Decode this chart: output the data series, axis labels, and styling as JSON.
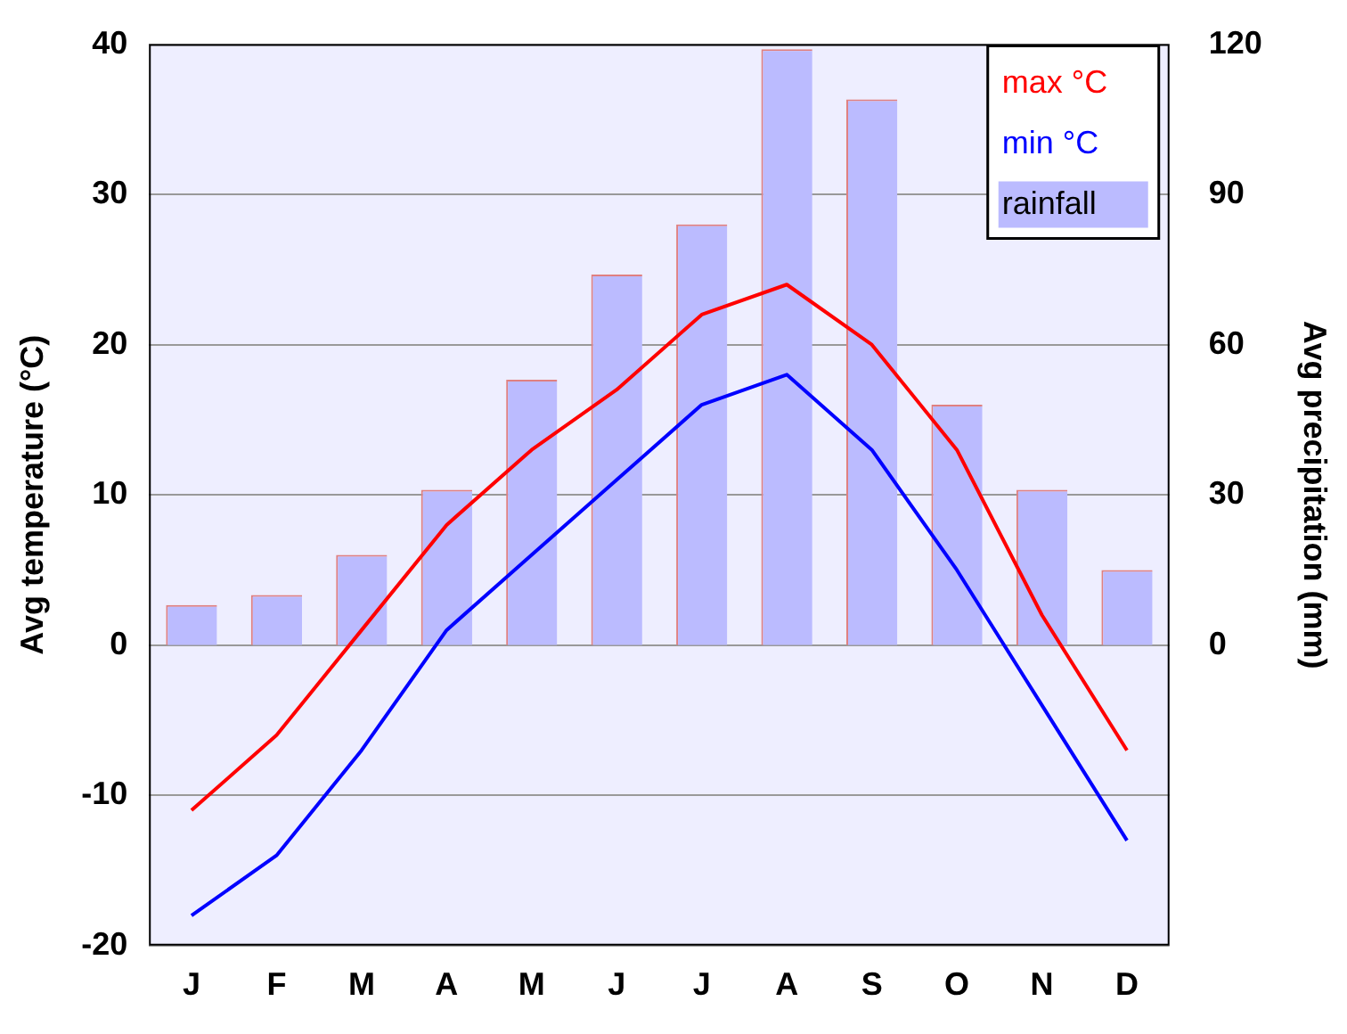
{
  "chart_data": {
    "type": "bar",
    "ylabel": "Avg temperature (°C)",
    "y2label": "Avg precipitation (mm)",
    "categories": [
      "J",
      "F",
      "M",
      "A",
      "M",
      "J",
      "J",
      "A",
      "S",
      "O",
      "N",
      "D"
    ],
    "series": [
      {
        "name": "max °C",
        "type": "line",
        "color": "#ff0000",
        "values": [
          -11,
          -6,
          1,
          8,
          13,
          17,
          22,
          24,
          20,
          13,
          2,
          -7
        ]
      },
      {
        "name": "min °C",
        "type": "line",
        "color": "#0000ff",
        "values": [
          -18,
          -14,
          -7,
          1,
          6,
          11,
          16,
          18,
          13,
          5,
          -4,
          -13
        ]
      },
      {
        "name": "rainfall",
        "axis": "y2",
        "color": "#bbbbff",
        "values": [
          8,
          10,
          18,
          31,
          53,
          74,
          84,
          119,
          109,
          48,
          31,
          15
        ]
      }
    ],
    "ylim": [
      -20,
      40
    ],
    "yticks": [
      -20,
      -10,
      0,
      10,
      20,
      30,
      40
    ],
    "y2lim": [
      -60,
      120
    ],
    "y2ticks": [
      0,
      30,
      60,
      90,
      120
    ],
    "grid": "y",
    "legend": "top right",
    "marker": "none"
  }
}
